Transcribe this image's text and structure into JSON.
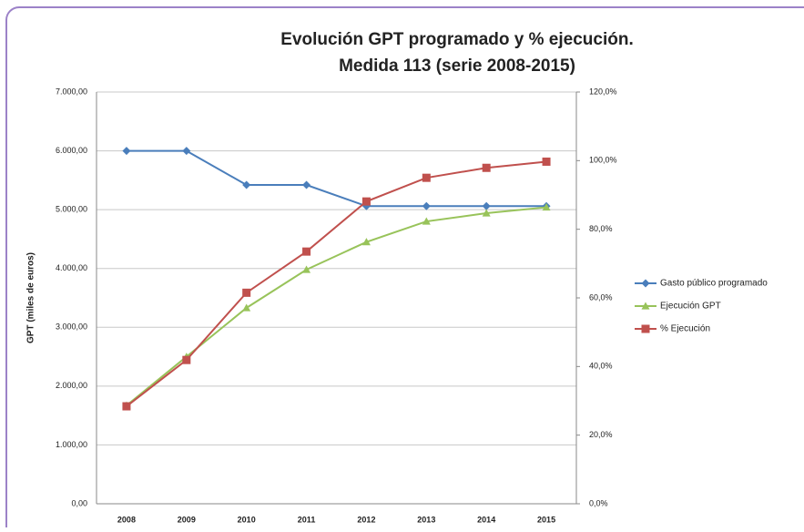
{
  "chart_data": {
    "type": "line",
    "title": "Evolución GPT programado y % ejecución.",
    "subtitle": "Medida 113 (serie 2008-2015)",
    "ylabel": "GPT (miles de euros)",
    "x": [
      "2008",
      "2009",
      "2010",
      "2011",
      "2012",
      "2013",
      "2014",
      "2015"
    ],
    "ylim": [
      0,
      7000
    ],
    "yticks": [
      {
        "value": 0,
        "label": "0,00"
      },
      {
        "value": 1000,
        "label": "1.000,00"
      },
      {
        "value": 2000,
        "label": "2.000,00"
      },
      {
        "value": 3000,
        "label": "3.000,00"
      },
      {
        "value": 4000,
        "label": "4.000,00"
      },
      {
        "value": 5000,
        "label": "5.000,00"
      },
      {
        "value": 6000,
        "label": "6.000,00"
      },
      {
        "value": 7000,
        "label": "7.000,00"
      }
    ],
    "y2lim": [
      0,
      120
    ],
    "y2ticks": [
      {
        "value": 0,
        "label": "0,0%"
      },
      {
        "value": 20,
        "label": "20,0%"
      },
      {
        "value": 40,
        "label": "40,0%"
      },
      {
        "value": 60,
        "label": "60,0%"
      },
      {
        "value": 80,
        "label": "80,0%"
      },
      {
        "value": 100,
        "label": "100,0%"
      },
      {
        "value": 120,
        "label": "120,0%"
      }
    ],
    "grid": true,
    "legend": "right",
    "series": [
      {
        "name": "Gasto público programado",
        "color": "#4a7ebb",
        "marker": "diamond",
        "values": [
          6000,
          6000,
          5420,
          5420,
          5060,
          5060,
          5060,
          5060
        ]
      },
      {
        "name": "Ejecución GPT",
        "color": "#98c35a",
        "marker": "triangle",
        "values": [
          1670,
          2500,
          3330,
          3980,
          4450,
          4800,
          4940,
          5040
        ]
      },
      {
        "name": "% Ejecución",
        "color": "#c0504d",
        "marker": "square",
        "axis": "y2",
        "values": [
          28.4,
          41.9,
          61.5,
          73.5,
          88.1,
          95.0,
          97.9,
          99.7
        ]
      }
    ]
  }
}
